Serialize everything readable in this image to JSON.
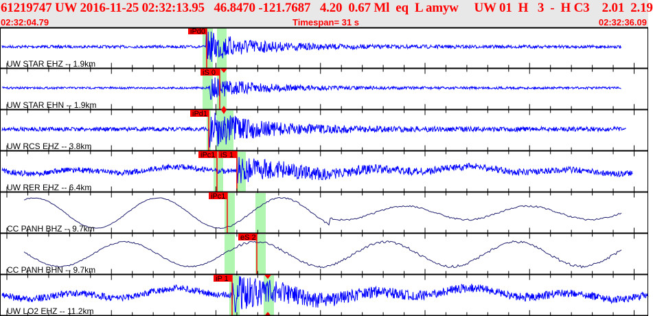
{
  "header": {
    "event_line": "61219747 UW 2016-11-25 02:32:13.95   46.8470 -121.7687   4.20  0.67 Ml  eq  L amyw     UW 01  H   3  -  H C3    2.01  2.19",
    "start_time": "02:32:04.79",
    "timespan": "Timespan=  31 s",
    "end_time": "02:32:36.09"
  },
  "colors": {
    "trace": "#0000ff",
    "trace_long": "#202070",
    "pick": "#ff0000",
    "window": "#b0f5b0"
  },
  "channels": [
    {
      "label": "UW STAR EHZ -- 1.9km",
      "picks": [
        "iPd0"
      ]
    },
    {
      "label": "UW STAR EHN -- 1.9km",
      "picks": [
        "iS 0"
      ]
    },
    {
      "label": "UW RCS EHZ -- 3.8km",
      "picks": [
        "iPd1"
      ]
    },
    {
      "label": "UW RER EHZ -- 6.4km",
      "picks": [
        "iPc1",
        "iS 1"
      ]
    },
    {
      "label": "CC PANH BHZ -- 9.7km",
      "picks": [
        "iPc1"
      ]
    },
    {
      "label": "CC PANH BHN -- 9.7km",
      "picks": [
        "eS 2"
      ]
    },
    {
      "label": "UW LO2 EHZ -- 11.2km",
      "picks": [
        "iP 1"
      ]
    }
  ]
}
